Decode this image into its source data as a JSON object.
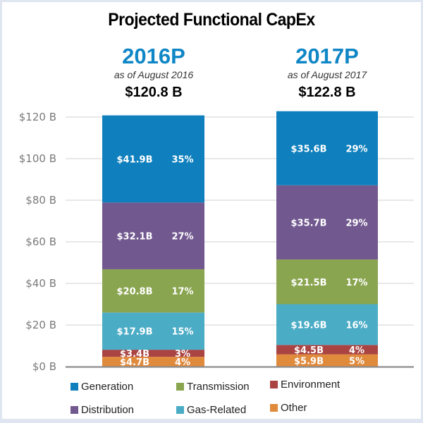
{
  "chart_data": {
    "type": "bar",
    "stacked": true,
    "title": "Projected Functional CapEx",
    "categories": [
      "2016P",
      "2017P"
    ],
    "category_subtitles": [
      "as of August 2016",
      "as of August 2017"
    ],
    "totals": [
      "$120.8 B",
      "$122.8 B"
    ],
    "ylim": [
      0,
      120
    ],
    "yticks": [
      0,
      20,
      40,
      60,
      80,
      100,
      120
    ],
    "ytick_labels": [
      "$0 B",
      "$20 B",
      "$40 B",
      "$60 B",
      "$80 B",
      "$100 B",
      "$120 B"
    ],
    "grid": true,
    "xlabel": "",
    "ylabel": "",
    "legend_position": "bottom",
    "series": [
      {
        "name": "Other",
        "color": "#e08a3c",
        "values": [
          4.7,
          5.9
        ],
        "labels": [
          "$4.7B",
          "$5.9B"
        ],
        "percents": [
          "4%",
          "5%"
        ]
      },
      {
        "name": "Environment",
        "color": "#a94443",
        "values": [
          3.4,
          4.5
        ],
        "labels": [
          "$3.4B",
          "$4.5B"
        ],
        "percents": [
          "3%",
          "4%"
        ]
      },
      {
        "name": "Gas-Related",
        "color": "#4bacc6",
        "values": [
          17.9,
          19.6
        ],
        "labels": [
          "$17.9B",
          "$19.6B"
        ],
        "percents": [
          "15%",
          "16%"
        ]
      },
      {
        "name": "Transmission",
        "color": "#8aa550",
        "values": [
          20.8,
          21.5
        ],
        "labels": [
          "$20.8B",
          "$21.5B"
        ],
        "percents": [
          "17%",
          "17%"
        ]
      },
      {
        "name": "Distribution",
        "color": "#71588f",
        "values": [
          32.1,
          35.7
        ],
        "labels": [
          "$32.1B",
          "$35.7B"
        ],
        "percents": [
          "27%",
          "29%"
        ]
      },
      {
        "name": "Generation",
        "color": "#0f80bd",
        "values": [
          41.9,
          35.6
        ],
        "labels": [
          "$41.9B",
          "$35.6B"
        ],
        "percents": [
          "35%",
          "29%"
        ]
      }
    ],
    "legend": [
      {
        "name": "Generation",
        "color": "#0f80bd"
      },
      {
        "name": "Transmission",
        "color": "#8aa550"
      },
      {
        "name": "Environment",
        "color": "#a94443"
      },
      {
        "name": "Distribution",
        "color": "#71588f"
      },
      {
        "name": "Gas-Related",
        "color": "#4bacc6"
      },
      {
        "name": "Other",
        "color": "#e08a3c"
      }
    ]
  }
}
